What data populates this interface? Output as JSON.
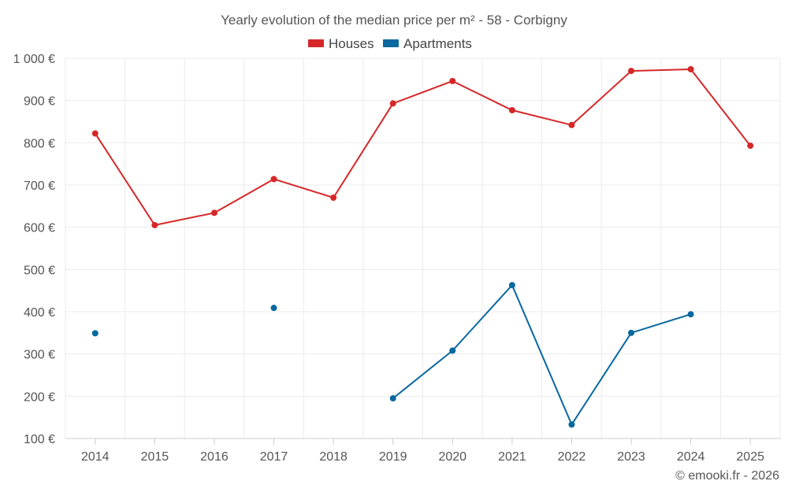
{
  "chart_data": {
    "type": "line",
    "title": "Yearly evolution of the median price per m² - 58 - Corbigny",
    "categories": [
      "2014",
      "2015",
      "2016",
      "2017",
      "2018",
      "2019",
      "2020",
      "2021",
      "2022",
      "2023",
      "2024",
      "2025"
    ],
    "ylim": [
      100,
      1000
    ],
    "yticks": [
      100,
      200,
      300,
      400,
      500,
      600,
      700,
      800,
      900,
      1000
    ],
    "ytick_labels": [
      "100 €",
      "200 €",
      "300 €",
      "400 €",
      "500 €",
      "600 €",
      "700 €",
      "800 €",
      "900 €",
      "1 000 €"
    ],
    "grid": true,
    "legend_position": "top-center",
    "series": [
      {
        "name": "Houses",
        "color": "#d62728",
        "values": [
          822,
          605,
          634,
          714,
          670,
          893,
          946,
          877,
          842,
          970,
          974,
          793
        ]
      },
      {
        "name": "Apartments",
        "color": "#0868a0",
        "values": [
          349,
          null,
          null,
          409,
          null,
          195,
          308,
          463,
          133,
          350,
          394,
          null
        ]
      }
    ],
    "credit": "© emooki.fr - 2026"
  }
}
